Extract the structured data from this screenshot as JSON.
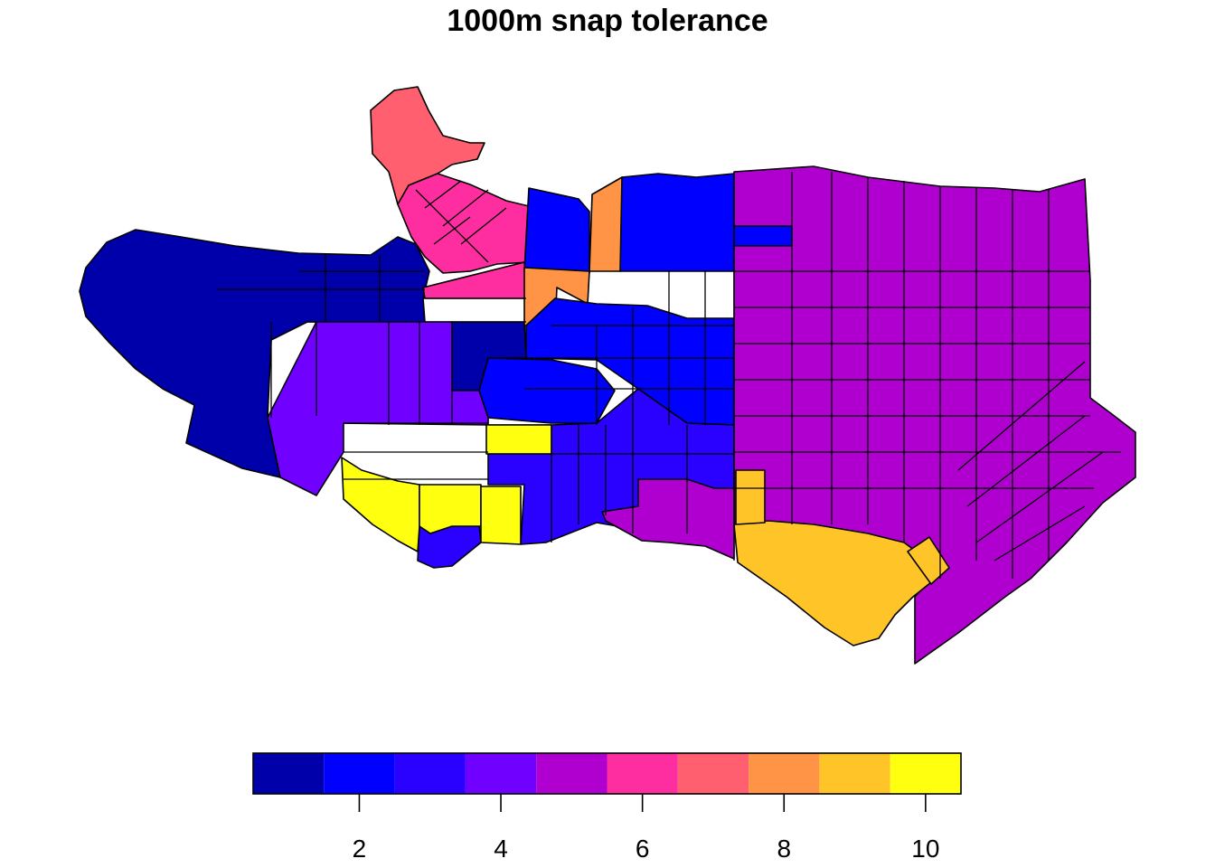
{
  "title": "1000m snap tolerance",
  "legend": {
    "colors": [
      "#0000AA",
      "#0000FF",
      "#2A00FF",
      "#7000FF",
      "#B000D0",
      "#FF2EA0",
      "#FF5F6E",
      "#FF9447",
      "#FFC428",
      "#FFFF10"
    ],
    "range": [
      0.5,
      10.5
    ],
    "tick_values": [
      2,
      4,
      6,
      8,
      10
    ],
    "tick_labels": [
      "2",
      "4",
      "6",
      "8",
      "10"
    ]
  }
}
